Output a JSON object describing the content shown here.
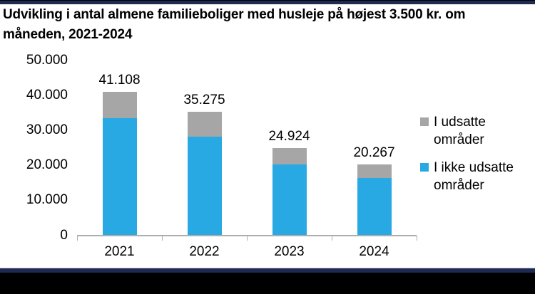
{
  "header": {
    "title_lines": [
      "Udvikling i antal almene familieboliger med husleje på højest 3.500 kr. om",
      "måneden, 2021-2024"
    ]
  },
  "colors": {
    "top_bar_navy": "#1F2A52",
    "bottom_bar_navy": "#1F2A52",
    "bottom_bar_black": "#000000",
    "axis_line": "#ADADAD",
    "title_text": "#000000"
  },
  "chart_data": {
    "type": "bar",
    "stacked": true,
    "title": "Udvikling i antal almene familieboliger med husleje på højest 3.500 kr. om måneden, 2021-2024",
    "categories": [
      "2021",
      "2022",
      "2023",
      "2024"
    ],
    "series": [
      {
        "name": "I udsatte områder",
        "color": "#A6A6A6",
        "values": [
          7608,
          7000,
          4600,
          3800
        ]
      },
      {
        "name": "I ikke udsatte områder",
        "color": "#29A9E4",
        "values": [
          33500,
          28275,
          20324,
          16467
        ]
      }
    ],
    "totals": [
      41108,
      35275,
      24924,
      20267
    ],
    "total_labels": [
      "41.108",
      "35.275",
      "24.924",
      "20.267"
    ],
    "xlabel": "",
    "ylabel": "",
    "ylim": [
      0,
      50000
    ],
    "ytick_labels": [
      "0",
      "10.000",
      "20.000",
      "30.000",
      "40.000",
      "50.000"
    ],
    "grid": false,
    "legend_position": "right"
  }
}
